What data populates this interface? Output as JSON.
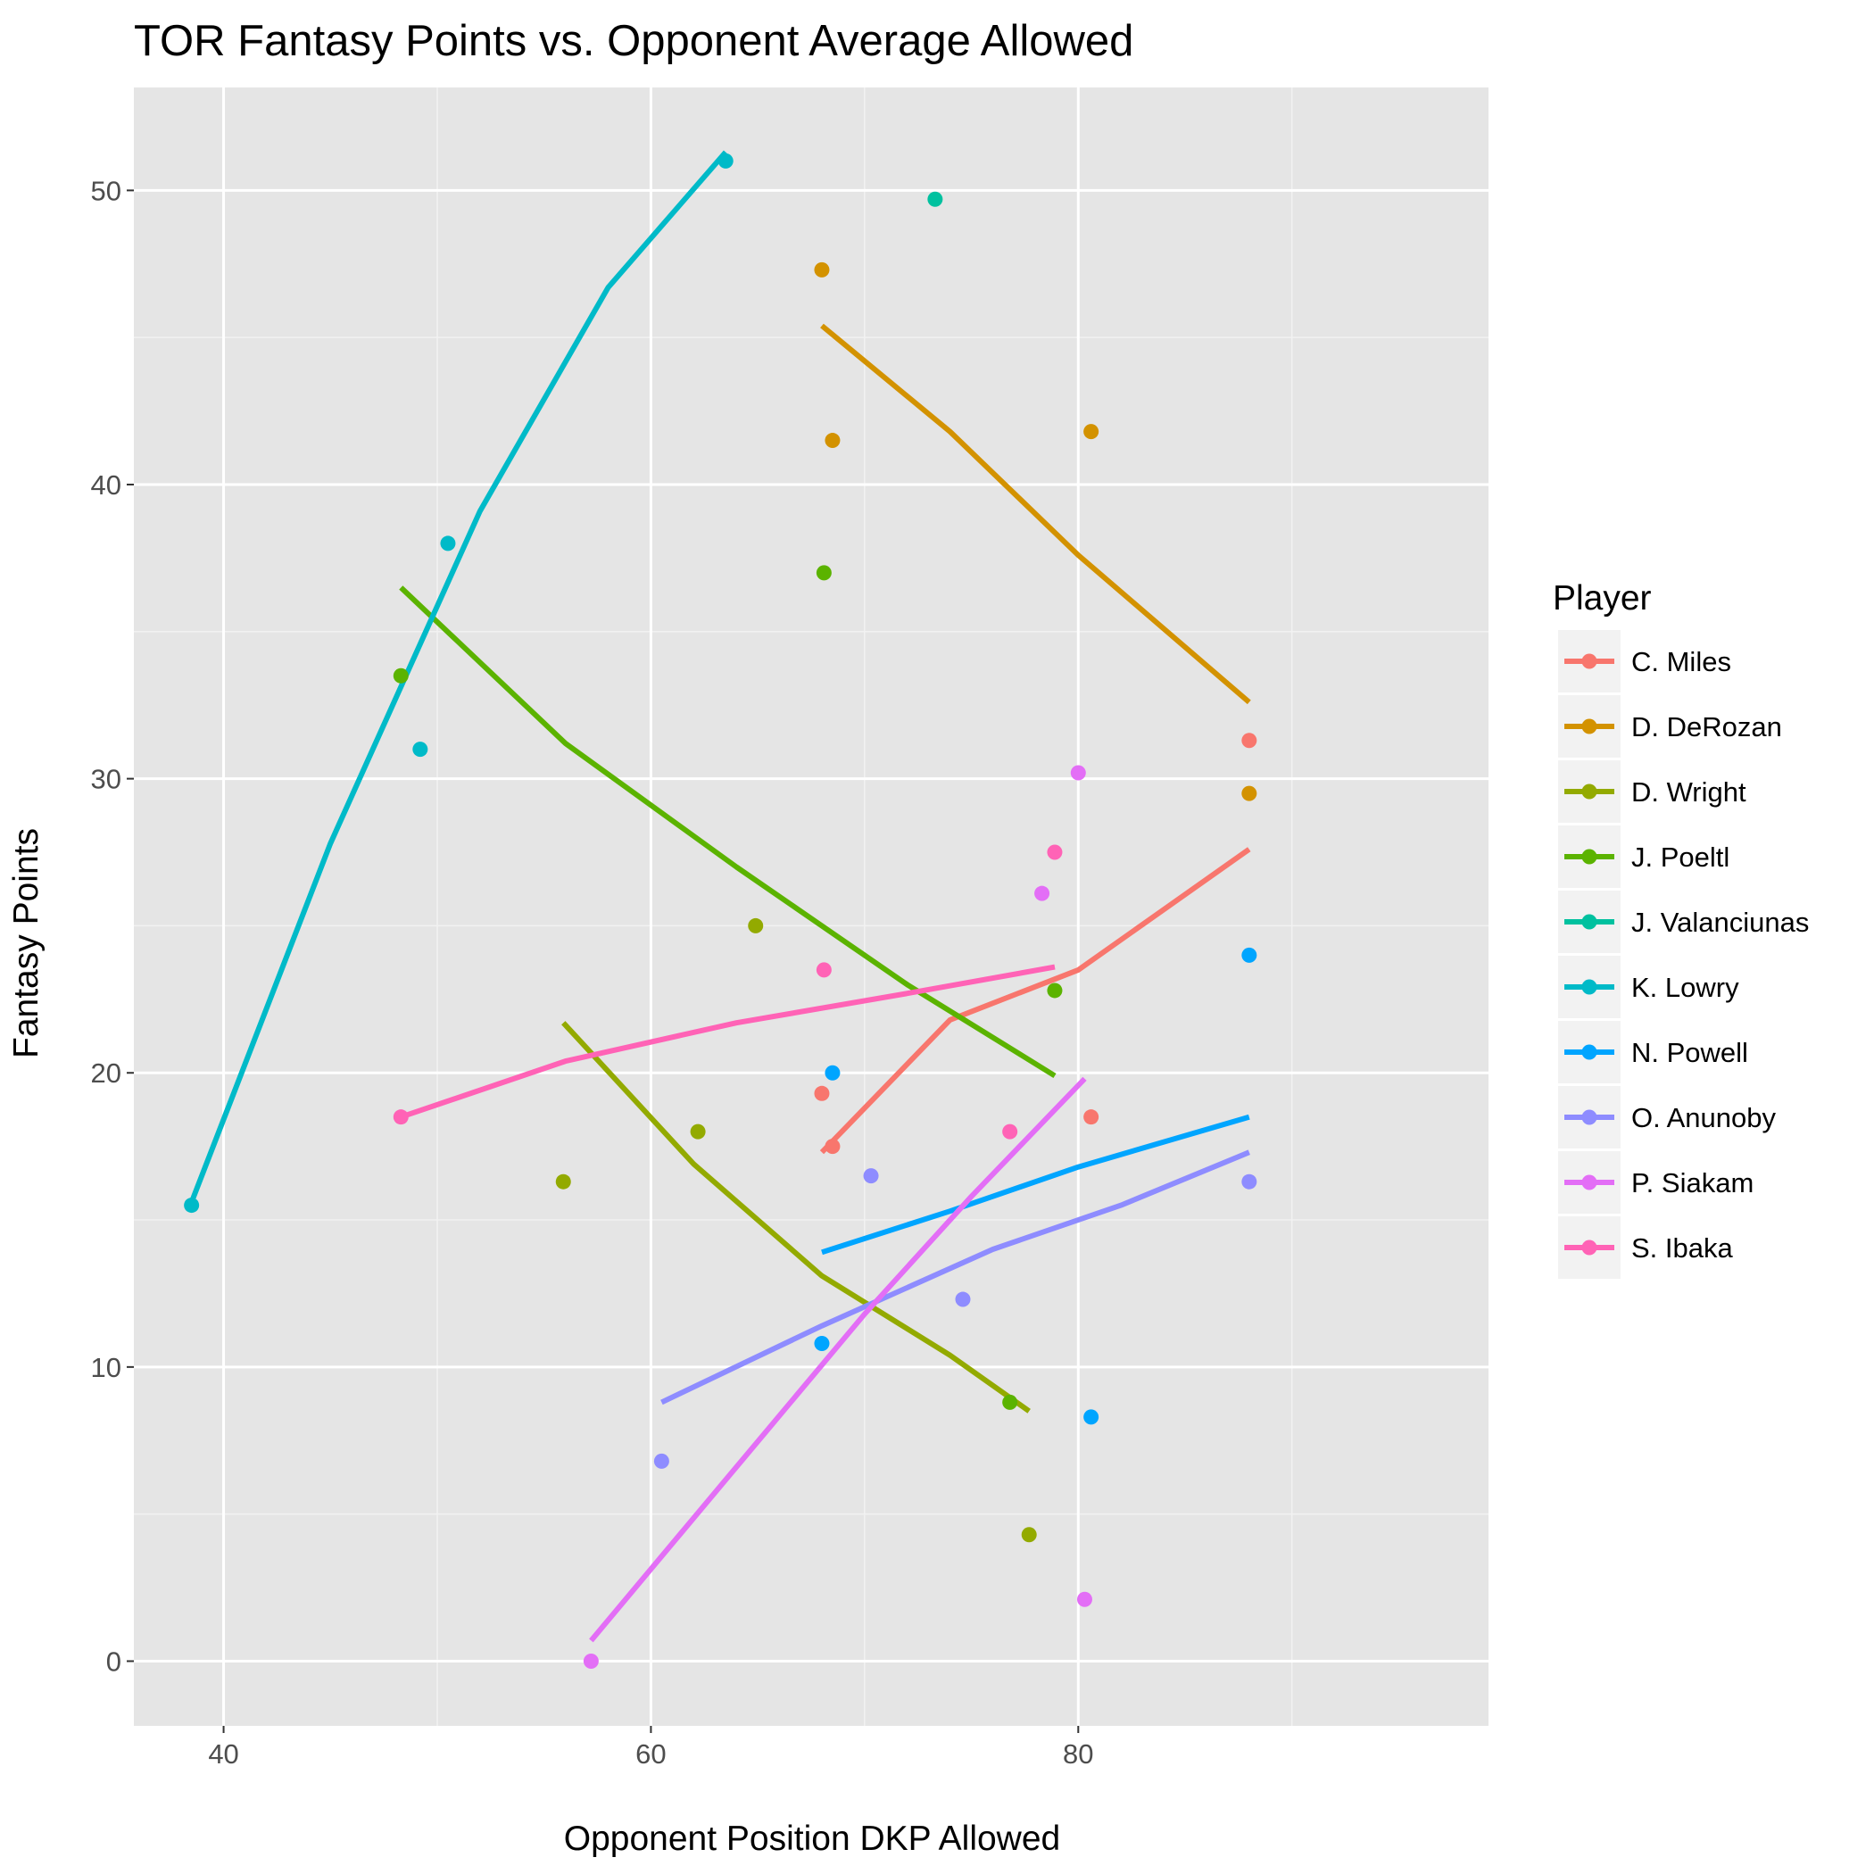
{
  "chart_data": {
    "type": "scatter",
    "title": "TOR Fantasy Points vs. Opponent Average Allowed",
    "xlabel": "Opponent Position DKP Allowed",
    "ylabel": "Fantasy Points",
    "xlim": [
      35.8,
      99.2
    ],
    "ylim": [
      -2.2,
      53.5
    ],
    "x_ticks": [
      40,
      60,
      80
    ],
    "y_ticks": [
      0,
      10,
      20,
      30,
      40,
      50
    ],
    "grid": true,
    "background": "#e5e5e5",
    "legend": {
      "title": "Player",
      "position": "right"
    },
    "series": [
      {
        "name": "C. Miles",
        "color": "#F8766D",
        "points": [
          [
            68.0,
            19.3
          ],
          [
            68.5,
            17.5
          ],
          [
            80.6,
            18.5
          ],
          [
            88.0,
            31.3
          ]
        ],
        "fit": [
          [
            68.0,
            17.3
          ],
          [
            74.0,
            21.8
          ],
          [
            80.0,
            23.5
          ],
          [
            88.0,
            27.6
          ]
        ]
      },
      {
        "name": "D. DeRozan",
        "color": "#D39200",
        "points": [
          [
            68.0,
            47.3
          ],
          [
            68.5,
            41.5
          ],
          [
            80.6,
            41.8
          ],
          [
            88.0,
            29.5
          ]
        ],
        "fit": [
          [
            68.0,
            45.4
          ],
          [
            74.0,
            41.8
          ],
          [
            80.0,
            37.6
          ],
          [
            88.0,
            32.6
          ]
        ]
      },
      {
        "name": "D. Wright",
        "color": "#93AA00",
        "points": [
          [
            55.9,
            16.3
          ],
          [
            62.2,
            18.0
          ],
          [
            64.9,
            25.0
          ],
          [
            77.7,
            4.3
          ]
        ],
        "fit": [
          [
            55.9,
            21.7
          ],
          [
            62.0,
            16.9
          ],
          [
            68.0,
            13.1
          ],
          [
            74.0,
            10.4
          ],
          [
            77.7,
            8.5
          ]
        ]
      },
      {
        "name": "J. Poeltl",
        "color": "#5BB300",
        "points": [
          [
            48.3,
            33.5
          ],
          [
            68.1,
            37.0
          ],
          [
            76.8,
            8.8
          ],
          [
            78.9,
            22.8
          ]
        ],
        "fit": [
          [
            48.3,
            36.5
          ],
          [
            56.0,
            31.2
          ],
          [
            64.0,
            27.0
          ],
          [
            72.0,
            23.0
          ],
          [
            78.9,
            19.9
          ]
        ]
      },
      {
        "name": "J. Valanciunas",
        "color": "#00C19F",
        "points": [
          [
            73.3,
            49.7
          ]
        ],
        "fit": []
      },
      {
        "name": "K. Lowry",
        "color": "#00BAC8",
        "points": [
          [
            38.5,
            15.5
          ],
          [
            49.2,
            31.0
          ],
          [
            50.5,
            38.0
          ],
          [
            63.5,
            51.0
          ]
        ],
        "fit": [
          [
            38.5,
            15.6
          ],
          [
            45.0,
            27.8
          ],
          [
            52.0,
            39.1
          ],
          [
            58.0,
            46.7
          ],
          [
            63.5,
            51.3
          ]
        ]
      },
      {
        "name": "N. Powell",
        "color": "#00A5FF",
        "points": [
          [
            68.0,
            10.8
          ],
          [
            68.5,
            20.0
          ],
          [
            80.6,
            8.3
          ],
          [
            88.0,
            24.0
          ]
        ],
        "fit": [
          [
            68.0,
            13.9
          ],
          [
            74.0,
            15.3
          ],
          [
            80.0,
            16.8
          ],
          [
            88.0,
            18.5
          ]
        ]
      },
      {
        "name": "O. Anunoby",
        "color": "#8E8CFF",
        "points": [
          [
            60.5,
            6.8
          ],
          [
            70.3,
            16.5
          ],
          [
            74.6,
            12.3
          ],
          [
            88.0,
            16.3
          ]
        ],
        "fit": [
          [
            60.5,
            8.8
          ],
          [
            68.0,
            11.4
          ],
          [
            76.0,
            14.0
          ],
          [
            82.0,
            15.5
          ],
          [
            88.0,
            17.3
          ]
        ]
      },
      {
        "name": "P. Siakam",
        "color": "#E36EF6",
        "points": [
          [
            57.2,
            0.0
          ],
          [
            78.3,
            26.1
          ],
          [
            80.0,
            30.2
          ],
          [
            80.3,
            2.1
          ]
        ],
        "fit": [
          [
            57.2,
            0.7
          ],
          [
            64.0,
            6.6
          ],
          [
            70.0,
            11.8
          ],
          [
            75.0,
            15.8
          ],
          [
            80.3,
            19.8
          ]
        ]
      },
      {
        "name": "S. Ibaka",
        "color": "#FF63B6",
        "points": [
          [
            48.3,
            18.5
          ],
          [
            68.1,
            23.5
          ],
          [
            76.8,
            18.0
          ],
          [
            78.9,
            27.5
          ]
        ],
        "fit": [
          [
            48.3,
            18.5
          ],
          [
            56.0,
            20.4
          ],
          [
            64.0,
            21.7
          ],
          [
            72.0,
            22.7
          ],
          [
            78.9,
            23.6
          ]
        ]
      }
    ]
  }
}
